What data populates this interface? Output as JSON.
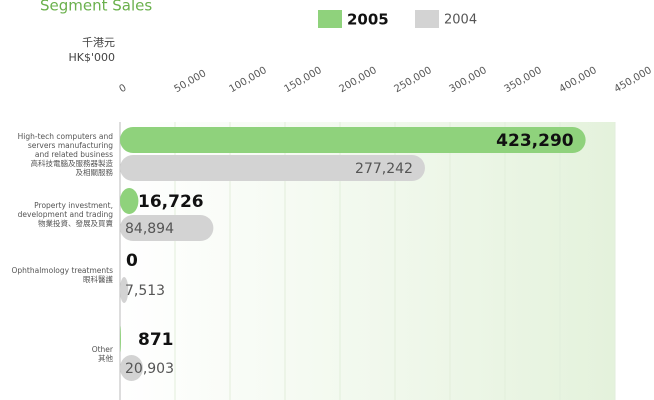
{
  "chart_data": {
    "type": "hbar",
    "title": "Segment Sales",
    "y_label": "千港元\nHK$'000",
    "categories": [
      "High-tech computers and\nservers manufacturing\nand related business\n高科技電腦及服務器製造\n及相關服務",
      "Property investment,\ndevelopment and trading\n物業投資、發展及買賣",
      "Ophthalmology treatments\n眼科醫護",
      "Other\n其他"
    ],
    "series": [
      {
        "name": "2005",
        "color": "#8fd27c",
        "values": [
          423290,
          16726,
          0,
          871
        ],
        "value_labels": [
          "423,290",
          "16,726",
          "0",
          "871"
        ]
      },
      {
        "name": "2004",
        "color": "#d3d3d3",
        "values": [
          277242,
          84894,
          7513,
          20903
        ],
        "value_labels": [
          "277,242",
          "84,894",
          "7,513",
          "20,903"
        ]
      }
    ],
    "xlim": [
      0,
      450000
    ],
    "xticks": [
      0,
      {
        "value": 50000,
        "label": "50,000"
      },
      {
        "value": 100000,
        "label": "100,000"
      },
      {
        "value": 150000,
        "label": "150,000"
      },
      {
        "value": 200000,
        "label": "200,000"
      },
      {
        "value": 250000,
        "label": "250,000"
      },
      {
        "value": 300000,
        "label": "300,000"
      },
      {
        "value": 350000,
        "label": "350,000"
      },
      {
        "value": 400000,
        "label": "400,000"
      },
      {
        "value": 450000,
        "label": "450,000"
      }
    ],
    "grid": true
  }
}
